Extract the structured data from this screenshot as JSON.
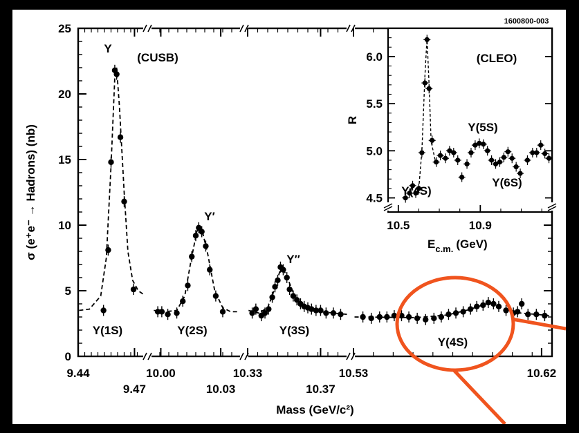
{
  "figure_id": "1600800-003",
  "chart_data": [
    {
      "type": "scatter",
      "title": "",
      "experiment_label": "(CUSB)",
      "ylabel": "σ (e⁺e⁻ → Hadrons) (nb)",
      "xlabel": "Mass (GeV/c²)",
      "ylim": [
        0,
        25
      ],
      "y_ticks": [
        0,
        5,
        10,
        15,
        20,
        25
      ],
      "x_axis": "broken axis with four segments",
      "segments": [
        {
          "name": "Υ(1S)",
          "x_range": [
            9.44,
            9.475
          ],
          "tick_labels_upper": [
            "9.44"
          ],
          "tick_labels_lower": [
            "9.47"
          ],
          "peak_symbol": "Υ",
          "resonance_label": "Υ(1S)",
          "points": [
            [
              9.4535,
              3.5
            ],
            [
              9.456,
              8.1
            ],
            [
              9.4575,
              14.8
            ],
            [
              9.4595,
              21.8
            ],
            [
              9.4605,
              21.5
            ],
            [
              9.4625,
              16.7
            ],
            [
              9.4645,
              11.8
            ],
            [
              9.4695,
              5.1
            ]
          ],
          "curve": [
            [
              9.4405,
              3.5
            ],
            [
              9.446,
              3.6
            ],
            [
              9.452,
              4.6
            ],
            [
              9.455,
              7.5
            ],
            [
              9.4575,
              14.5
            ],
            [
              9.4595,
              21.2
            ],
            [
              9.4605,
              22.0
            ],
            [
              9.462,
              19.0
            ],
            [
              9.4645,
              12.5
            ],
            [
              9.4665,
              8.0
            ],
            [
              9.469,
              5.8
            ],
            [
              9.472,
              5.0
            ],
            [
              9.475,
              4.7
            ]
          ]
        },
        {
          "name": "Υ(2S)",
          "x_range": [
            9.995,
            10.04
          ],
          "tick_labels_upper": [
            "10.00"
          ],
          "tick_labels_lower": [
            "10.03"
          ],
          "peak_symbol": "Υ′",
          "resonance_label": "Υ(2S)",
          "points": [
            [
              9.9985,
              3.4
            ],
            [
              10.0005,
              3.4
            ],
            [
              10.0035,
              3.2
            ],
            [
              10.008,
              3.3
            ],
            [
              10.011,
              4.2
            ],
            [
              10.0135,
              5.4
            ],
            [
              10.0155,
              7.6
            ],
            [
              10.0175,
              9.2
            ],
            [
              10.019,
              9.8
            ],
            [
              10.0205,
              9.5
            ],
            [
              10.0225,
              8.4
            ],
            [
              10.0245,
              6.6
            ],
            [
              10.0275,
              4.6
            ],
            [
              10.031,
              3.4
            ]
          ],
          "curve": [
            [
              9.9965,
              3.5
            ],
            [
              10.002,
              3.4
            ],
            [
              10.008,
              3.5
            ],
            [
              10.012,
              4.6
            ],
            [
              10.015,
              7.2
            ],
            [
              10.018,
              9.5
            ],
            [
              10.0195,
              9.9
            ],
            [
              10.021,
              9.4
            ],
            [
              10.0235,
              7.8
            ],
            [
              10.027,
              5.0
            ],
            [
              10.031,
              3.7
            ],
            [
              10.035,
              3.4
            ],
            [
              10.0395,
              3.4
            ]
          ]
        },
        {
          "name": "Υ(3S)",
          "x_range": [
            10.33,
            10.385
          ],
          "tick_labels_upper": [
            "10.33"
          ],
          "tick_labels_lower": [
            "10.37"
          ],
          "peak_symbol": "Υ″",
          "resonance_label": "Υ(3S)",
          "points": [
            [
              10.3325,
              3.3
            ],
            [
              10.3345,
              3.6
            ],
            [
              10.3375,
              3.1
            ],
            [
              10.3395,
              3.3
            ],
            [
              10.3415,
              3.6
            ],
            [
              10.3435,
              4.5
            ],
            [
              10.345,
              5.3
            ],
            [
              10.3465,
              5.8
            ],
            [
              10.348,
              6.8
            ],
            [
              10.3495,
              6.6
            ],
            [
              10.3515,
              6.0
            ],
            [
              10.353,
              5.1
            ],
            [
              10.355,
              4.6
            ],
            [
              10.357,
              4.3
            ],
            [
              10.359,
              4.0
            ],
            [
              10.361,
              3.8
            ],
            [
              10.363,
              3.7
            ],
            [
              10.365,
              3.6
            ],
            [
              10.3675,
              3.5
            ],
            [
              10.37,
              3.5
            ],
            [
              10.373,
              3.3
            ],
            [
              10.377,
              3.3
            ],
            [
              10.381,
              3.2
            ]
          ],
          "curve": [
            [
              10.3305,
              3.5
            ],
            [
              10.336,
              3.3
            ],
            [
              10.341,
              3.7
            ],
            [
              10.345,
              5.2
            ],
            [
              10.3485,
              6.9
            ],
            [
              10.3515,
              6.1
            ],
            [
              10.356,
              4.5
            ],
            [
              10.362,
              3.7
            ],
            [
              10.37,
              3.4
            ],
            [
              10.3845,
              3.2
            ]
          ]
        },
        {
          "name": "Υ(4S)",
          "x_range": [
            10.53,
            10.625
          ],
          "tick_labels_upper": [
            "10.53",
            "10.62"
          ],
          "tick_labels_lower": [],
          "peak_symbol": "",
          "resonance_label": "Υ(4S)",
          "points": [
            [
              10.5345,
              3.0
            ],
            [
              10.5385,
              2.9
            ],
            [
              10.5425,
              3.0
            ],
            [
              10.546,
              3.0
            ],
            [
              10.5495,
              3.1
            ],
            [
              10.553,
              3.1
            ],
            [
              10.5565,
              3.0
            ],
            [
              10.5605,
              2.9
            ],
            [
              10.5645,
              2.8
            ],
            [
              10.5685,
              2.9
            ],
            [
              10.572,
              3.0
            ],
            [
              10.5755,
              3.2
            ],
            [
              10.579,
              3.3
            ],
            [
              10.5825,
              3.4
            ],
            [
              10.586,
              3.6
            ],
            [
              10.589,
              3.8
            ],
            [
              10.592,
              3.9
            ],
            [
              10.5945,
              4.1
            ],
            [
              10.597,
              4.0
            ],
            [
              10.5995,
              3.8
            ],
            [
              10.603,
              3.5
            ],
            [
              10.6065,
              3.3
            ],
            [
              10.6085,
              3.4
            ],
            [
              10.6105,
              4.0
            ],
            [
              10.6135,
              3.2
            ],
            [
              10.6175,
              3.2
            ],
            [
              10.6215,
              3.1
            ]
          ],
          "curve": [
            [
              10.5305,
              3.0
            ],
            [
              10.56,
              2.95
            ],
            [
              10.575,
              3.15
            ],
            [
              10.585,
              3.55
            ],
            [
              10.5945,
              4.05
            ],
            [
              10.601,
              3.7
            ],
            [
              10.61,
              3.3
            ],
            [
              10.6245,
              3.1
            ]
          ]
        }
      ]
    },
    {
      "type": "scatter",
      "title": "",
      "experiment_label": "(CLEO)",
      "xlabel": "E_c.m. (GeV)",
      "xlabel_main": "E",
      "xlabel_sub": "c.m.",
      "xlabel_unit": "(GeV)",
      "ylabel": "R",
      "xlim": [
        10.45,
        11.25
      ],
      "ylim": [
        4.35,
        6.3
      ],
      "x_ticks": [
        "10.5",
        "10.9"
      ],
      "x_tick_values": [
        10.5,
        10.9
      ],
      "y_ticks": [
        "4.5",
        "5.0",
        "5.5",
        "6.0"
      ],
      "y_tick_values": [
        4.5,
        5.0,
        5.5,
        6.0
      ],
      "labels": [
        "Υ(4S)",
        "Υ(5S)",
        "Υ(6S)"
      ],
      "points": [
        [
          10.535,
          4.5
        ],
        [
          10.555,
          4.55
        ],
        [
          10.57,
          4.63
        ],
        [
          10.585,
          4.55
        ],
        [
          10.6,
          4.6
        ],
        [
          10.615,
          4.98
        ],
        [
          10.63,
          5.72
        ],
        [
          10.64,
          6.18
        ],
        [
          10.65,
          5.66
        ],
        [
          10.665,
          5.11
        ],
        [
          10.685,
          4.88
        ],
        [
          10.705,
          4.95
        ],
        [
          10.73,
          4.92
        ],
        [
          10.75,
          5.0
        ],
        [
          10.77,
          4.98
        ],
        [
          10.79,
          4.9
        ],
        [
          10.81,
          4.72
        ],
        [
          10.835,
          4.86
        ],
        [
          10.855,
          4.98
        ],
        [
          10.875,
          5.06
        ],
        [
          10.895,
          5.08
        ],
        [
          10.915,
          5.07
        ],
        [
          10.935,
          5.0
        ],
        [
          10.955,
          4.9
        ],
        [
          10.975,
          4.86
        ],
        [
          10.995,
          4.88
        ],
        [
          11.015,
          4.93
        ],
        [
          11.035,
          4.99
        ],
        [
          11.055,
          4.92
        ],
        [
          11.075,
          4.83
        ],
        [
          11.095,
          4.76
        ],
        [
          11.13,
          4.9
        ],
        [
          11.155,
          4.98
        ],
        [
          11.175,
          4.98
        ],
        [
          11.195,
          5.06
        ],
        [
          11.215,
          4.97
        ],
        [
          11.235,
          4.92
        ]
      ],
      "curve": [
        [
          10.6,
          4.6
        ],
        [
          10.615,
          5.0
        ],
        [
          10.63,
          5.8
        ],
        [
          10.64,
          6.2
        ],
        [
          10.65,
          5.7
        ],
        [
          10.66,
          5.1
        ],
        [
          10.68,
          4.9
        ]
      ]
    }
  ],
  "annotation": {
    "type": "highlight-ellipse",
    "color": "#f0541e",
    "target": "Υ(4S)"
  }
}
